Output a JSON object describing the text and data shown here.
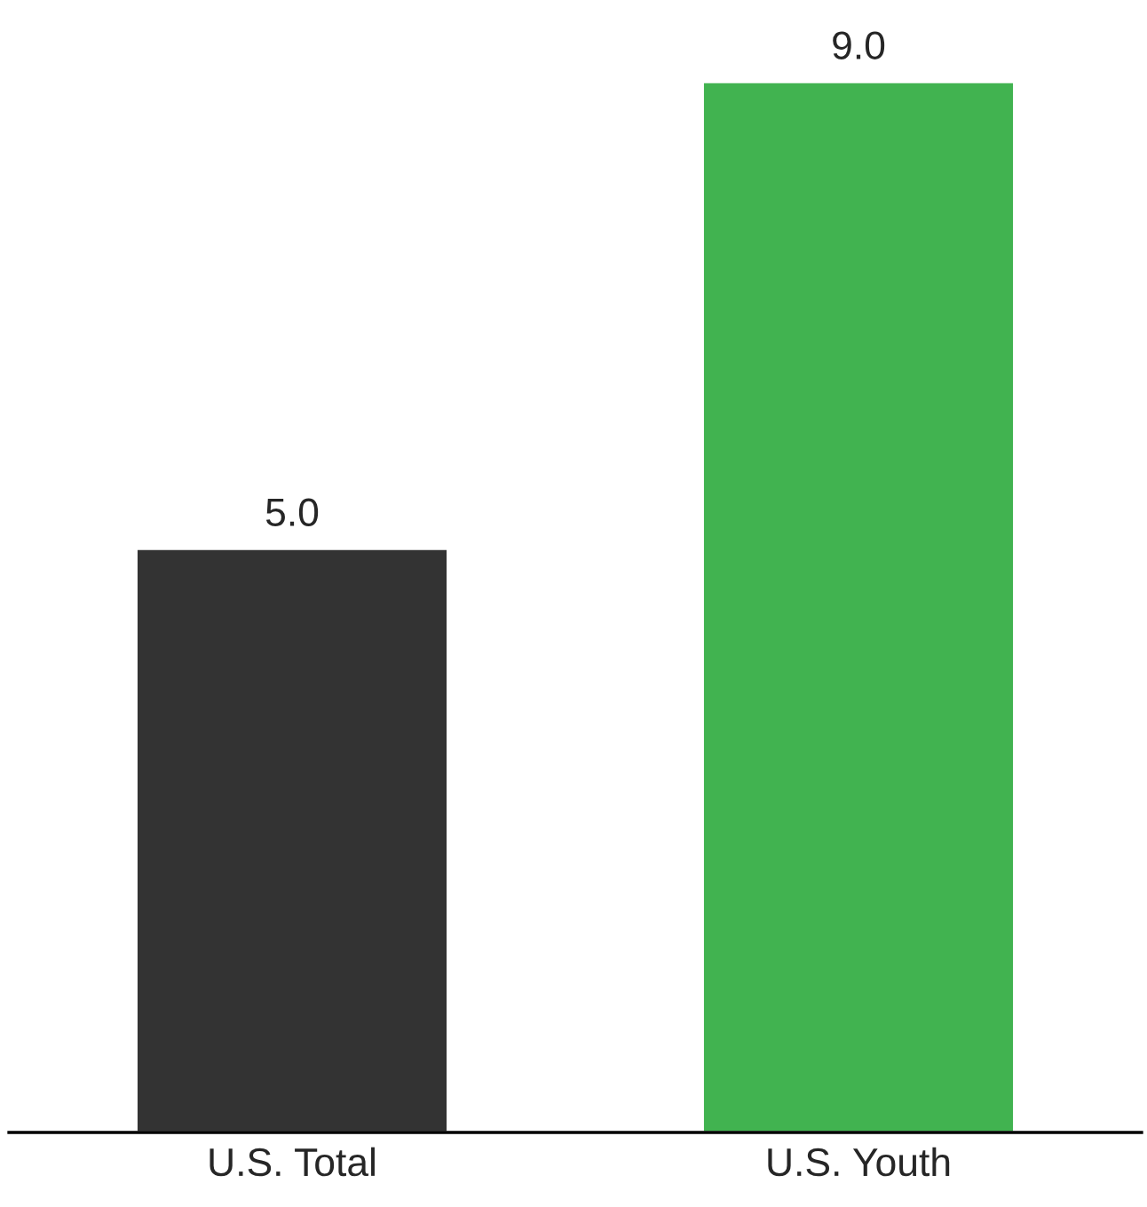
{
  "chart_data": {
    "type": "bar",
    "categories": [
      "U.S. Total",
      "U.S. Youth"
    ],
    "values": [
      5,
      9
    ],
    "value_labels": [
      "5.0",
      "9.0"
    ],
    "colors": [
      "#333333",
      "#41b350"
    ],
    "tick_labels": "x",
    "grid": false,
    "legend": false
  }
}
